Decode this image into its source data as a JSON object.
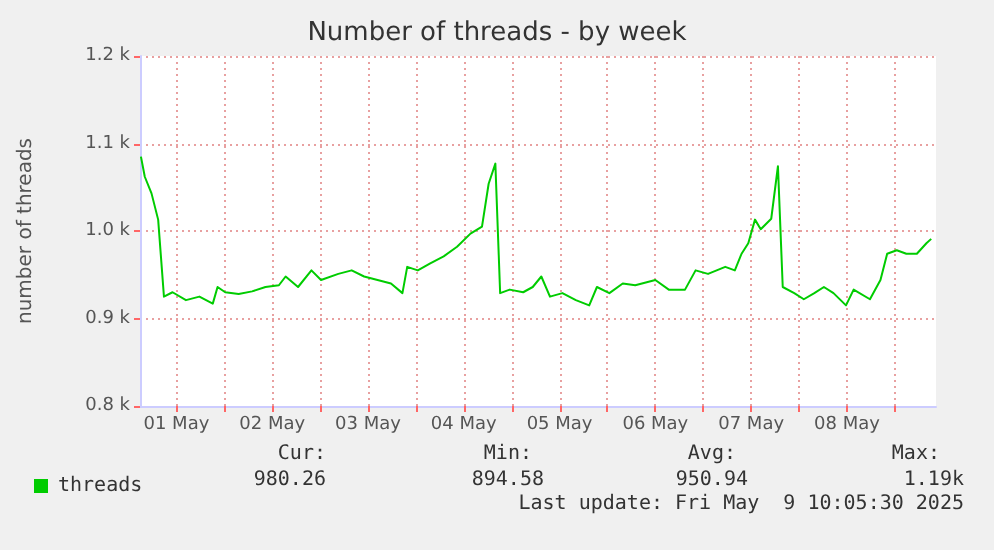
{
  "chart_data": {
    "type": "line",
    "title": "Number of threads - by week",
    "ylabel": "number of threads",
    "x": [
      "2025-05-01T03:07",
      "2025-05-01T04:05",
      "2025-05-01T05:46",
      "2025-05-01T07:26",
      "2025-05-01T08:53",
      "2025-05-01T11:02",
      "2025-05-01T14:24",
      "2025-05-01T17:46",
      "2025-05-01T21:07",
      "2025-05-01T22:19",
      "2025-05-02T00:14",
      "2025-05-02T03:36",
      "2025-05-02T06:58",
      "2025-05-02T10:19",
      "2025-05-02T13:41",
      "2025-05-02T15:22",
      "2025-05-02T18:29",
      "2025-05-02T21:50",
      "2025-05-03T00:14",
      "2025-05-03T04:34",
      "2025-05-03T07:55",
      "2025-05-03T11:02",
      "2025-05-03T14:24",
      "2025-05-03T17:46",
      "2025-05-03T20:38",
      "2025-05-03T21:50",
      "2025-05-04T00:29",
      "2025-05-04T03:36",
      "2025-05-04T06:58",
      "2025-05-04T10:19",
      "2025-05-04T13:41",
      "2025-05-04T16:34",
      "2025-05-04T18:14",
      "2025-05-04T19:55",
      "2025-05-04T21:07",
      "2025-05-04T23:31",
      "2025-05-05T02:53",
      "2025-05-05T05:17",
      "2025-05-05T07:26",
      "2025-05-05T09:36",
      "2025-05-05T12:43",
      "2025-05-05T16:05",
      "2025-05-05T19:26",
      "2025-05-05T21:22",
      "2025-05-06T00:29",
      "2025-05-06T03:50",
      "2025-05-06T06:58",
      "2025-05-06T12:00",
      "2025-05-06T15:22",
      "2025-05-06T19:26",
      "2025-05-06T22:05",
      "2025-05-07T01:12",
      "2025-05-07T05:31",
      "2025-05-07T07:55",
      "2025-05-07T09:36",
      "2025-05-07T11:17",
      "2025-05-07T12:58",
      "2025-05-07T14:24",
      "2025-05-07T17:02",
      "2025-05-07T18:43",
      "2025-05-07T19:55",
      "2025-05-07T22:48",
      "2025-05-08T01:12",
      "2025-05-08T03:50",
      "2025-05-08T06:14",
      "2025-05-08T08:38",
      "2025-05-08T11:46",
      "2025-05-08T13:41",
      "2025-05-08T17:46",
      "2025-05-08T20:24",
      "2025-05-08T22:05",
      "2025-05-09T00:29",
      "2025-05-09T02:53",
      "2025-05-09T05:31",
      "2025-05-09T07:55",
      "2025-05-09T09:07"
    ],
    "series": [
      {
        "name": "threads",
        "color": "#00cc00",
        "values": [
          1085,
          1062,
          1043,
          1013,
          925,
          930,
          921,
          925,
          917,
          936,
          930,
          928,
          931,
          936,
          938,
          948,
          936,
          955,
          944,
          951,
          955,
          948,
          944,
          940,
          929,
          959,
          955,
          963,
          971,
          982,
          997,
          1005,
          1054,
          1077,
          929,
          933,
          930,
          936,
          948,
          925,
          929,
          921,
          915,
          936,
          929,
          940,
          938,
          944,
          933,
          933,
          955,
          951,
          959,
          955,
          974,
          986,
          1013,
          1002,
          1014,
          1074,
          936,
          929,
          922,
          929,
          936,
          929,
          915,
          933,
          922,
          944,
          974,
          978,
          974,
          974,
          986,
          991
        ]
      }
    ],
    "xlim": [
      "2025-05-01T02:53",
      "2025-05-09T10:19"
    ],
    "xticks": [
      {
        "value": "2025-05-01T12:00",
        "label": "01 May"
      },
      {
        "value": "2025-05-02T00:00",
        "label": null
      },
      {
        "value": "2025-05-02T12:00",
        "label": "02 May"
      },
      {
        "value": "2025-05-03T00:00",
        "label": null
      },
      {
        "value": "2025-05-03T12:00",
        "label": "03 May"
      },
      {
        "value": "2025-05-04T00:00",
        "label": null
      },
      {
        "value": "2025-05-04T12:00",
        "label": "04 May"
      },
      {
        "value": "2025-05-05T00:00",
        "label": null
      },
      {
        "value": "2025-05-05T12:00",
        "label": "05 May"
      },
      {
        "value": "2025-05-06T00:00",
        "label": null
      },
      {
        "value": "2025-05-06T12:00",
        "label": "06 May"
      },
      {
        "value": "2025-05-07T00:00",
        "label": null
      },
      {
        "value": "2025-05-07T12:00",
        "label": "07 May"
      },
      {
        "value": "2025-05-08T00:00",
        "label": null
      },
      {
        "value": "2025-05-08T12:00",
        "label": "08 May"
      },
      {
        "value": "2025-05-09T00:00",
        "label": null
      }
    ],
    "ylim": [
      800,
      1200
    ],
    "yticks": [
      {
        "value": 800,
        "label": "0.8 k"
      },
      {
        "value": 900,
        "label": "0.9 k"
      },
      {
        "value": 1000,
        "label": "1.0 k"
      },
      {
        "value": 1100,
        "label": "1.1 k"
      },
      {
        "value": 1200,
        "label": "1.2 k"
      }
    ],
    "grid": true,
    "legend": "bottom left",
    "marker": "none",
    "line_style": "solid",
    "annotations": [
      "Cur:",
      "980.26",
      "Min:",
      "894.58",
      "Avg:",
      "950.94",
      "Max:",
      "1.19k",
      "Last update: Fri May  9 10:05:30 2025"
    ]
  }
}
